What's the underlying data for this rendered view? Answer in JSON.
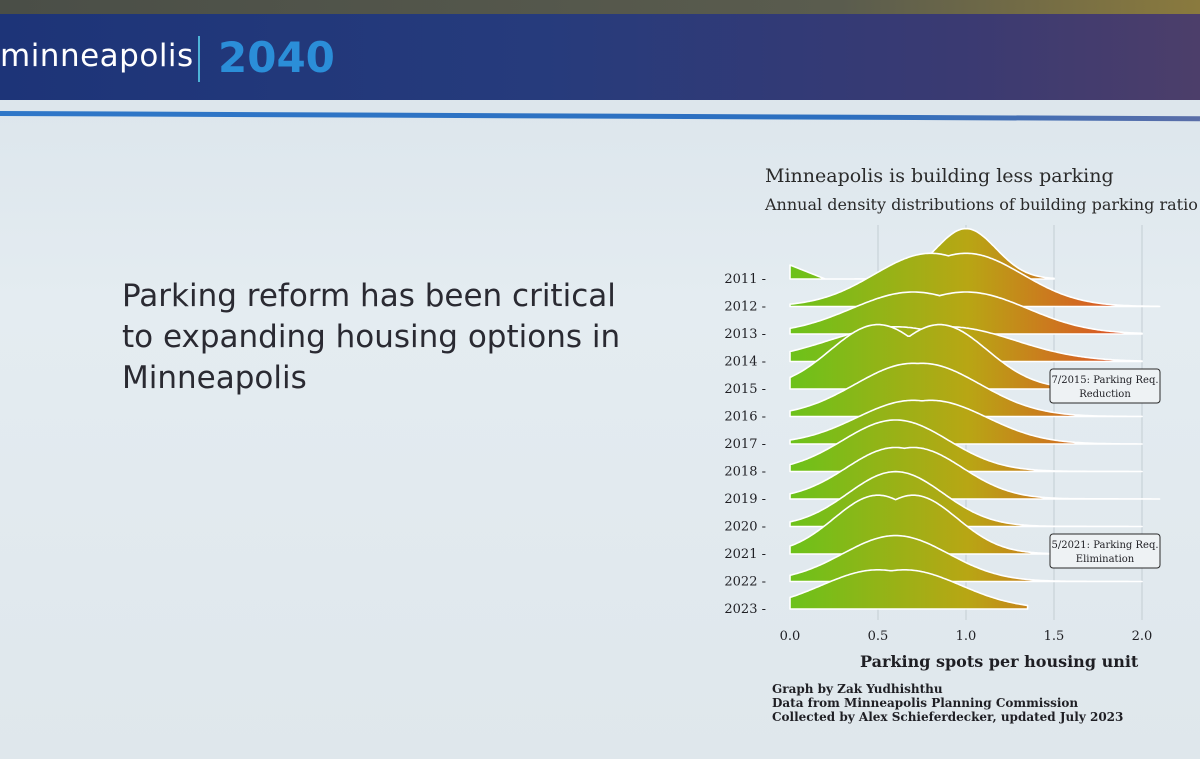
{
  "header": {
    "brand_name": "minneapolis",
    "brand_year": "2040"
  },
  "slide": {
    "headline": "Parking reform has been critical to expanding housing options in Minneapolis"
  },
  "chart_data": {
    "type": "area",
    "title": "Minneapolis is building less parking",
    "subtitle": "Annual density distributions of building parking ratio",
    "xlabel": "Parking spots per housing unit",
    "ylabel": "",
    "xlim": [
      0,
      2.0
    ],
    "x_ticks": [
      "0.0",
      "0.5",
      "1.0",
      "1.5",
      "2.0"
    ],
    "grid": "vertical",
    "color_scale": {
      "low": "#6cc21a",
      "mid": "#b8a614",
      "high": "#e2452a"
    },
    "series": [
      {
        "name": "2011",
        "x_max": 1.5,
        "peak": [
          1.0,
          1.0
        ],
        "sd": 0.17,
        "height": 0.9,
        "left_blip": true
      },
      {
        "name": "2012",
        "x_max": 2.1,
        "peak": [
          1.0,
          0.8
        ],
        "sd": 0.32,
        "height": 0.95,
        "tail": 0.06
      },
      {
        "name": "2013",
        "x_max": 2.0,
        "peak": [
          1.0,
          0.7
        ],
        "sd": 0.35,
        "height": 0.75,
        "tail": 0.12
      },
      {
        "name": "2014",
        "x_max": 2.0,
        "peak": [
          0.9,
          0.6
        ],
        "sd": 0.38,
        "height": 0.62,
        "tail": 0.15
      },
      {
        "name": "2015",
        "x_max": 1.5,
        "peak": [
          0.85,
          0.5
        ],
        "sd": 0.27,
        "height": 1.15,
        "tail": 0.0
      },
      {
        "name": "2016",
        "x_max": 2.0,
        "peak": [
          0.75,
          0.7
        ],
        "sd": 0.33,
        "height": 0.95,
        "tail": 0.08
      },
      {
        "name": "2017",
        "x_max": 2.0,
        "peak": [
          0.7,
          0.8
        ],
        "sd": 0.32,
        "height": 0.78,
        "tail": 0.05
      },
      {
        "name": "2018",
        "x_max": 2.0,
        "peak": [
          0.6,
          0.6
        ],
        "sd": 0.3,
        "height": 0.92,
        "tail": 0.03
      },
      {
        "name": "2019",
        "x_max": 2.1,
        "peak": [
          0.7,
          0.6
        ],
        "sd": 0.28,
        "height": 0.92,
        "tail": 0.04
      },
      {
        "name": "2020",
        "x_max": 2.0,
        "peak": [
          0.6,
          0.6
        ],
        "sd": 0.27,
        "height": 0.98,
        "tail": 0.03
      },
      {
        "name": "2021",
        "x_max": 2.0,
        "peak": [
          0.7,
          0.5
        ],
        "sd": 0.25,
        "height": 1.05,
        "tail": 0.02
      },
      {
        "name": "2022",
        "x_max": 2.0,
        "peak": [
          0.6,
          0.6
        ],
        "sd": 0.3,
        "height": 0.82,
        "tail": 0.03
      },
      {
        "name": "2023",
        "x_max": 1.35,
        "peak": [
          0.65,
          0.5
        ],
        "sd": 0.32,
        "height": 0.7,
        "tail": 0.0
      }
    ],
    "annotations": [
      {
        "year": "2015",
        "text": [
          "7/2015: Parking Req.",
          "Reduction"
        ]
      },
      {
        "year": "2021",
        "text": [
          "5/2021: Parking Req.",
          "Elimination"
        ]
      }
    ],
    "credits": [
      "Graph by Zak Yudhishthu",
      "Data from Minneapolis Planning Commission",
      "Collected by Alex Schieferdecker, updated July 2023"
    ]
  }
}
